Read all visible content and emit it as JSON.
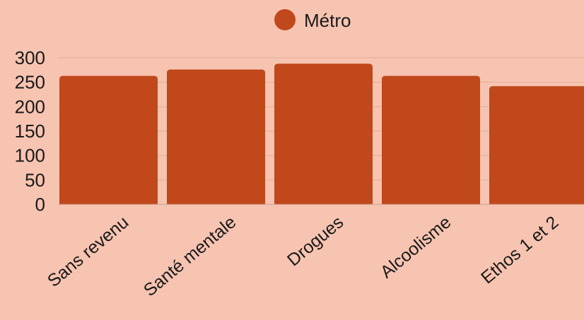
{
  "chart_data": {
    "type": "bar",
    "categories": [
      "Sans revenu",
      "Santé mentale",
      "Drogues",
      "Alcoolisme",
      "Ethos 1 et 2"
    ],
    "series": [
      {
        "name": "Métro",
        "values": [
          263,
          276,
          288,
          263,
          242
        ]
      }
    ],
    "yticks": [
      "300",
      "250",
      "200",
      "150",
      "100",
      "50",
      "0"
    ],
    "ylim": [
      0,
      300
    ],
    "grid": true,
    "legend_position": "top-center",
    "colors": {
      "bar": "#c0481b",
      "background": "#f7c4b1",
      "gridline": "#e3ad98"
    }
  }
}
